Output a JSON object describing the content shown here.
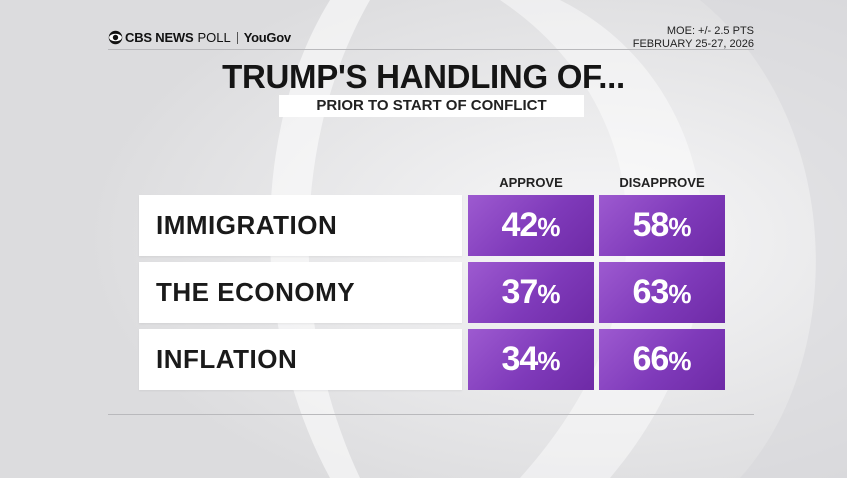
{
  "brand": {
    "network": "CBS NEWS",
    "poll": "POLL",
    "partner": "YouGov"
  },
  "meta": {
    "moe": "MOE: +/- 2.5 PTS",
    "dates": "FEBRUARY 25-27, 2026"
  },
  "title": "TRUMP'S HANDLING OF...",
  "subtitle": "PRIOR TO START OF CONFLICT",
  "columns": [
    "APPROVE",
    "DISAPPROVE"
  ],
  "chart_data": {
    "type": "table",
    "title": "TRUMP'S HANDLING OF...",
    "subtitle": "PRIOR TO START OF CONFLICT",
    "columns": [
      "APPROVE",
      "DISAPPROVE"
    ],
    "unit": "%",
    "rows": [
      {
        "label": "IMMIGRATION",
        "approve": "42",
        "disapprove": "58"
      },
      {
        "label": "THE ECONOMY",
        "approve": "37",
        "disapprove": "63"
      },
      {
        "label": "INFLATION",
        "approve": "34",
        "disapprove": "66"
      }
    ]
  },
  "colors": {
    "cell": "#7f3aba",
    "cell_light": "#9d5ad0",
    "background": "#e9e9ea"
  },
  "icons": {
    "logo": "cbs-eye-icon"
  }
}
